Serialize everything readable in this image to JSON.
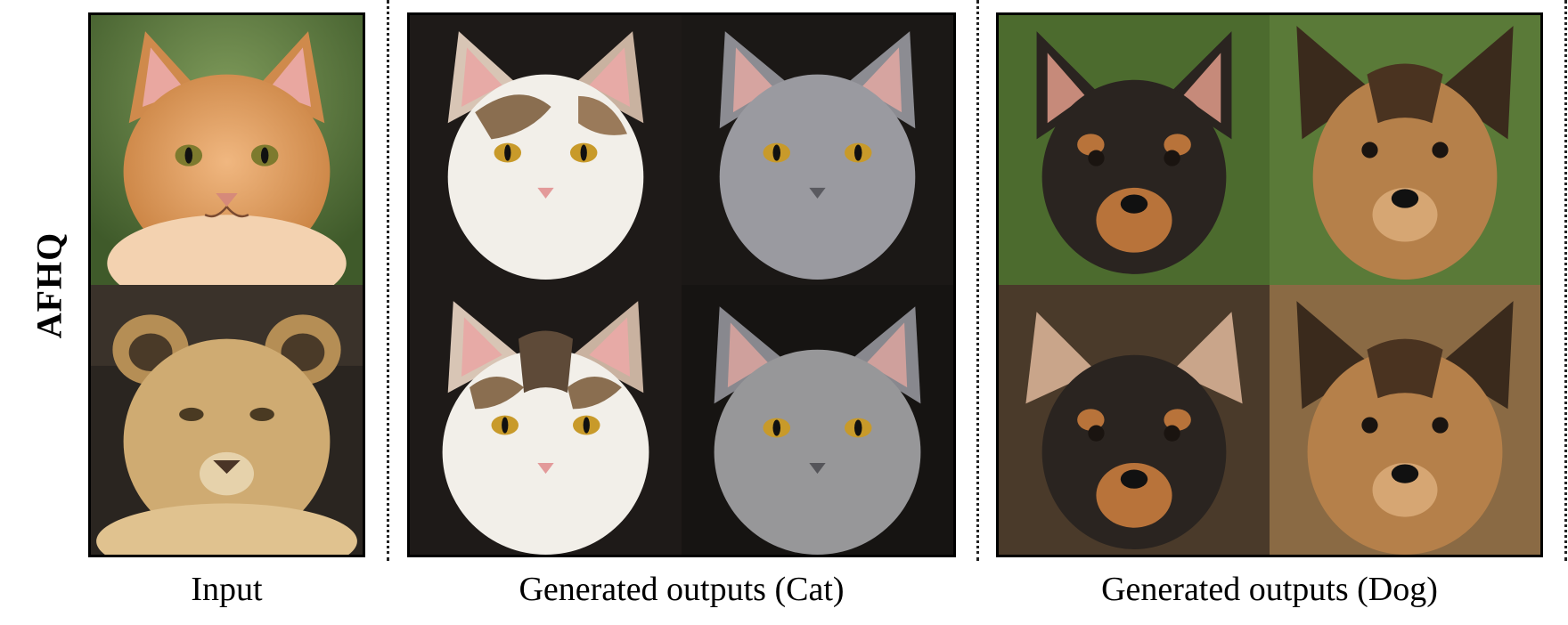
{
  "row_label": "AFHQ",
  "columns": {
    "input": "Input",
    "cat": "Generated outputs (Cat)",
    "dog": "Generated outputs (Dog)"
  },
  "images": {
    "input": [
      "orange-kitten-photo",
      "lion-cub-photo"
    ],
    "cat": [
      "calico-cat-photo-1",
      "gray-cat-photo-1",
      "calico-cat-photo-2",
      "gray-cat-photo-2"
    ],
    "dog": [
      "black-tan-dog-photo-1",
      "shepherd-dog-photo-1",
      "black-tan-dog-photo-2",
      "shepherd-dog-photo-2"
    ]
  },
  "colors": {
    "orange_kitten": "#d9955a",
    "lion_cub": "#c9a66b",
    "calico_white": "#f2efe9",
    "calico_patch": "#8a6e50",
    "gray_cat": "#9a9aa0",
    "black_tan_dog": "#2a2420",
    "tan_marking": "#b8733a",
    "shepherd_dog": "#b5804a",
    "green_bg": "#4c6b2e",
    "dark_bg": "#1e1a18",
    "eye": "#c89a2a"
  }
}
